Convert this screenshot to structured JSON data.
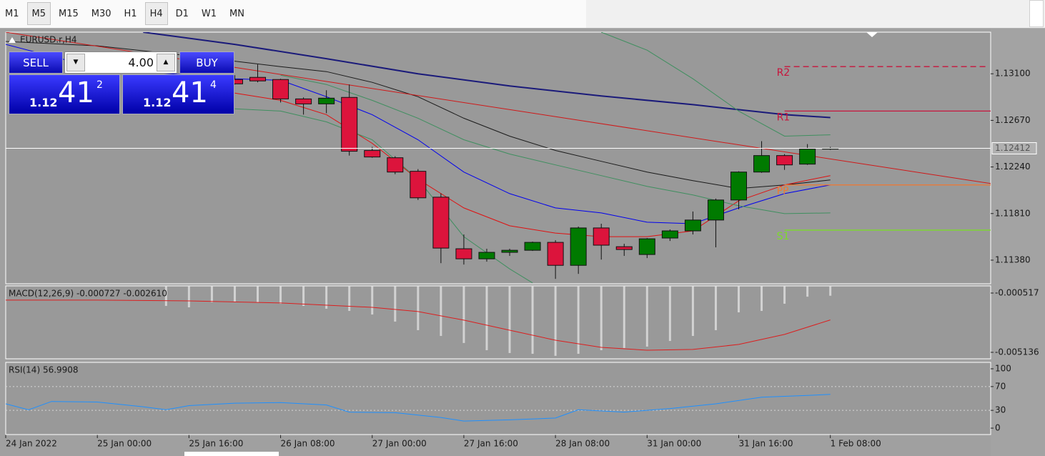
{
  "toolbar": {
    "timeframes": [
      "M1",
      "M5",
      "M15",
      "M30",
      "H1",
      "H4",
      "D1",
      "W1",
      "MN"
    ],
    "selected": [
      1,
      5
    ]
  },
  "trade_panel": {
    "sell_label": "SELL",
    "buy_label": "BUY",
    "lot": "4.00",
    "sell_price": {
      "main": "1.12",
      "big": "41",
      "pip": "2"
    },
    "buy_price": {
      "main": "1.12",
      "big": "41",
      "pip": "4"
    }
  },
  "chart_data": [
    {
      "type": "candlestick",
      "title": "EURUSD.r,H4",
      "x": [
        10,
        11,
        12,
        13,
        14,
        15,
        16,
        17,
        18,
        19,
        20,
        21,
        22,
        23,
        24,
        25,
        26,
        27,
        28,
        29,
        30,
        31,
        32,
        33,
        34,
        35,
        36
      ],
      "open": [
        1.13047,
        1.13067,
        1.13047,
        1.12868,
        1.12822,
        1.12882,
        1.12392,
        1.12325,
        1.122,
        1.11961,
        1.11485,
        1.11392,
        1.11452,
        1.11471,
        1.11544,
        1.11332,
        1.11677,
        1.11504,
        1.11432,
        1.11584,
        1.1165,
        1.1175,
        1.11935,
        1.12193,
        1.12345,
        1.12266,
        1.12405
      ],
      "high": [
        1.13087,
        1.13186,
        1.13054,
        1.12882,
        1.12948,
        1.13001,
        1.12425,
        1.12339,
        1.1222,
        1.11995,
        1.11617,
        1.11485,
        1.11485,
        1.11551,
        1.11564,
        1.1169,
        1.11716,
        1.11531,
        1.11584,
        1.11663,
        1.11829,
        1.11948,
        1.122,
        1.12478,
        1.12359,
        1.12451,
        1.12425
      ],
      "low": [
        1.13001,
        1.13021,
        1.12835,
        1.12723,
        1.12736,
        1.12345,
        1.12325,
        1.12173,
        1.11935,
        1.11352,
        1.11339,
        1.11366,
        1.11419,
        1.11465,
        1.11207,
        1.11253,
        1.11385,
        1.11419,
        1.11399,
        1.11557,
        1.11617,
        1.11498,
        1.11849,
        1.12186,
        1.12213,
        1.12259,
        1.12398
      ],
      "close": [
        1.13007,
        1.13034,
        1.12868,
        1.12822,
        1.12875,
        1.12385,
        1.12332,
        1.12193,
        1.11955,
        1.11491,
        1.11392,
        1.11452,
        1.11471,
        1.11544,
        1.11332,
        1.11677,
        1.11518,
        1.11478,
        1.11577,
        1.1165,
        1.1175,
        1.11935,
        1.12193,
        1.12345,
        1.12259,
        1.12405,
        1.12412
      ],
      "up_color": "#007a00",
      "down_color": "#dc143c",
      "xlim": [
        0,
        43
      ],
      "ylim": [
        1.11162,
        1.13484
      ],
      "yticks": [
        {
          "value": 1.131,
          "label": "1.13100"
        },
        {
          "value": 1.1267,
          "label": "1.12670"
        },
        {
          "value": 1.1224,
          "label": "1.12240"
        },
        {
          "value": 1.1181,
          "label": "1.11810"
        },
        {
          "value": 1.1138,
          "label": "1.11380"
        }
      ],
      "xticks": [
        {
          "value": 0,
          "label": "24 Jan 2022"
        },
        {
          "value": 4,
          "label": "25 Jan 00:00"
        },
        {
          "value": 8,
          "label": "25 Jan 16:00"
        },
        {
          "value": 12,
          "label": "26 Jan 08:00"
        },
        {
          "value": 16,
          "label": "27 Jan 00:00"
        },
        {
          "value": 20,
          "label": "27 Jan 16:00"
        },
        {
          "value": 24,
          "label": "28 Jan 08:00"
        },
        {
          "value": 28,
          "label": "31 Jan 00:00"
        },
        {
          "value": 32,
          "label": "31 Jan 16:00"
        },
        {
          "value": 36,
          "label": "1 Feb 08:00"
        }
      ],
      "current_price": 1.12412,
      "lines": [
        {
          "color": "#1a1a7a",
          "width": 2,
          "x": [
            6,
            10,
            14,
            18,
            22,
            26,
            30,
            34,
            36
          ],
          "values": [
            1.13484,
            1.13371,
            1.13239,
            1.131,
            1.12987,
            1.12895,
            1.12815,
            1.12723,
            1.12696
          ]
        },
        {
          "color": "#1a1a1a",
          "width": 1,
          "x": [
            0,
            4,
            8,
            12,
            14,
            16,
            18,
            20,
            22,
            24,
            26,
            28,
            30,
            32,
            34,
            36
          ],
          "values": [
            1.13398,
            1.13358,
            1.13266,
            1.13166,
            1.1312,
            1.13021,
            1.12888,
            1.1269,
            1.12524,
            1.12392,
            1.12292,
            1.12193,
            1.12114,
            1.12041,
            1.12074,
            1.1212
          ]
        },
        {
          "color": "#0000ee",
          "width": 1,
          "x": [
            0,
            4,
            8,
            10,
            12,
            14,
            16,
            18,
            20,
            22,
            24,
            26,
            28,
            30,
            32,
            34,
            36
          ],
          "values": [
            1.13371,
            1.13153,
            1.13087,
            1.13054,
            1.1304,
            1.12888,
            1.12723,
            1.12491,
            1.12193,
            1.11994,
            1.11862,
            1.11816,
            1.1173,
            1.11716,
            1.11862,
            1.11994,
            1.12074
          ]
        },
        {
          "color": "#e01010",
          "width": 1,
          "x": [
            10,
            12,
            14,
            16,
            18,
            20,
            22,
            24,
            26,
            28,
            30,
            32,
            34,
            36
          ],
          "values": [
            1.12921,
            1.12855,
            1.12723,
            1.12458,
            1.12127,
            1.11862,
            1.11697,
            1.1163,
            1.11597,
            1.11597,
            1.1165,
            1.11928,
            1.12074,
            1.1216
          ]
        },
        {
          "color": "#3f8f5f",
          "width": 1,
          "x": [
            12,
            14,
            16,
            18,
            20,
            22,
            24,
            26,
            28,
            30,
            32,
            34,
            36
          ],
          "values": [
            1.13087,
            1.13001,
            1.12855,
            1.1269,
            1.12491,
            1.12359,
            1.12259,
            1.1216,
            1.12061,
            1.11981,
            1.11882,
            1.11809,
            1.11816
          ]
        },
        {
          "color": "#3f8f5f",
          "width": 1,
          "x": [
            26,
            28,
            30,
            32,
            34,
            36
          ],
          "values": [
            1.13484,
            1.13318,
            1.13054,
            1.12756,
            1.12524,
            1.12537
          ]
        },
        {
          "color": "#3f8f5f",
          "width": 1,
          "x": [
            10,
            12,
            14,
            16,
            18,
            20,
            22,
            23
          ],
          "values": [
            1.12776,
            1.12756,
            1.12656,
            1.12491,
            1.12127,
            1.11597,
            1.11299,
            1.1117
          ]
        },
        {
          "color": "#d01818",
          "width": 1,
          "x": [
            0,
            43
          ],
          "values": [
            1.13484,
            1.12087
          ]
        }
      ],
      "pivot_x_start": 34,
      "pivots": [
        {
          "name": "R2",
          "value": 1.13166,
          "color": "#c8143c",
          "dashed": true
        },
        {
          "name": "R1",
          "value": 1.12756,
          "color": "#c8143c",
          "dashed": false
        },
        {
          "name": "PP",
          "value": 1.12074,
          "color": "#f07830",
          "dashed": false
        },
        {
          "name": "S1",
          "value": 1.11657,
          "color": "#7cdc28",
          "dashed": false
        }
      ]
    },
    {
      "type": "macd",
      "title": "MACD(12,26,9) -0.000727 -0.002610",
      "x": [
        7,
        8,
        9,
        10,
        11,
        12,
        13,
        14,
        15,
        16,
        17,
        18,
        19,
        20,
        21,
        22,
        23,
        24,
        25,
        26,
        27,
        28,
        29,
        30,
        31,
        32,
        33,
        34,
        35,
        36
      ],
      "values": [
        -0.00152,
        -0.00163,
        -0.00124,
        -0.00118,
        -0.00124,
        -0.00135,
        -0.00152,
        -0.00174,
        -0.00191,
        -0.00219,
        -0.00274,
        -0.00341,
        -0.00386,
        -0.00441,
        -0.00497,
        -0.00519,
        -0.00525,
        -0.00541,
        -0.00525,
        -0.00497,
        -0.0048,
        -0.00469,
        -0.00425,
        -0.00386,
        -0.00341,
        -0.00202,
        -0.00191,
        -0.00135,
        -0.0008,
        -0.000727
      ],
      "color": "#d2d2d2",
      "signal": {
        "color": "#dc1e1e",
        "x": [
          0,
          4,
          8,
          12,
          16,
          18,
          20,
          22,
          24,
          26,
          28,
          30,
          32,
          34,
          36
        ],
        "values": [
          -0.00107,
          -0.00107,
          -0.00113,
          -0.00129,
          -0.00163,
          -0.00196,
          -0.00263,
          -0.00341,
          -0.00419,
          -0.00475,
          -0.00497,
          -0.00491,
          -0.00452,
          -0.00374,
          -0.00261
        ]
      },
      "xlim": [
        0,
        43
      ],
      "ylim": [
        -0.00564,
        4e-05
      ],
      "yticks": [
        -0.000517,
        -0.005136
      ]
    },
    {
      "type": "line",
      "title": "RSI(14) 56.9908",
      "x": [
        0,
        1,
        2,
        4,
        6,
        7,
        8,
        10,
        12,
        14,
        15,
        17,
        19,
        20,
        22,
        24,
        25,
        27,
        29,
        31,
        33,
        35,
        36
      ],
      "values": [
        41,
        31,
        45,
        44,
        36,
        31,
        38,
        42,
        43,
        39,
        27,
        26,
        18,
        12,
        14,
        17,
        31,
        27,
        33,
        41,
        52,
        55,
        56.9908
      ],
      "color": "#1e90ff",
      "xlim": [
        0,
        43
      ],
      "ylim": [
        -10.8,
        110.8
      ],
      "yticks": [
        100,
        70,
        30,
        0
      ],
      "levels": [
        70,
        30
      ]
    }
  ]
}
